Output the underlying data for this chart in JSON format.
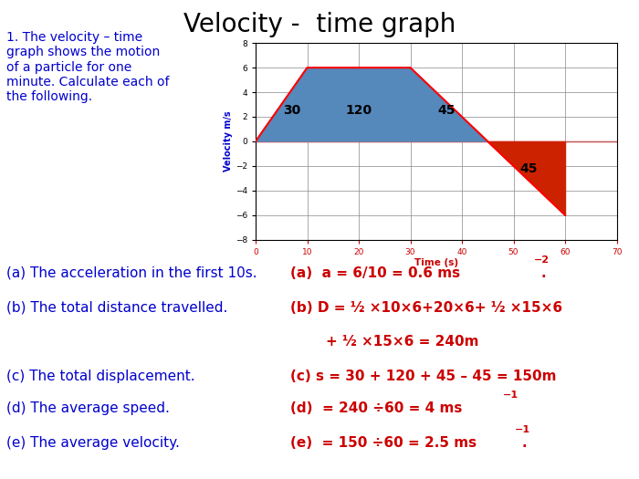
{
  "title": "Velocity -  time graph",
  "title_fontsize": 20,
  "title_color": "#000000",
  "bg_color": "#ffffff",
  "blue_color": "#0000cc",
  "red_color": "#cc0000",
  "graph_blue_fill": "#5588bb",
  "graph_red_fill": "#cc2200",
  "graph_line_color": "#ff0000",
  "xlabel": "Time (s)",
  "ylabel": "Velocity m/s",
  "xlim": [
    0,
    70
  ],
  "ylim": [
    -8,
    8
  ],
  "xticks": [
    0,
    10,
    20,
    30,
    40,
    50,
    60,
    70
  ],
  "yticks": [
    -8,
    -6,
    -4,
    -2,
    0,
    2,
    4,
    6,
    8
  ],
  "velocity_points_x": [
    0,
    10,
    30,
    45,
    60
  ],
  "velocity_points_y": [
    0,
    6,
    6,
    0,
    -6
  ],
  "intro_text": "1. The velocity – time\ngraph shows the motion\nof a particle for one\nminute. Calculate each of\nthe following.",
  "label_30": "30",
  "label_120": "120",
  "label_45_blue": "45",
  "label_45_red": "45",
  "fs_qa": 11,
  "fs_intro": 10
}
